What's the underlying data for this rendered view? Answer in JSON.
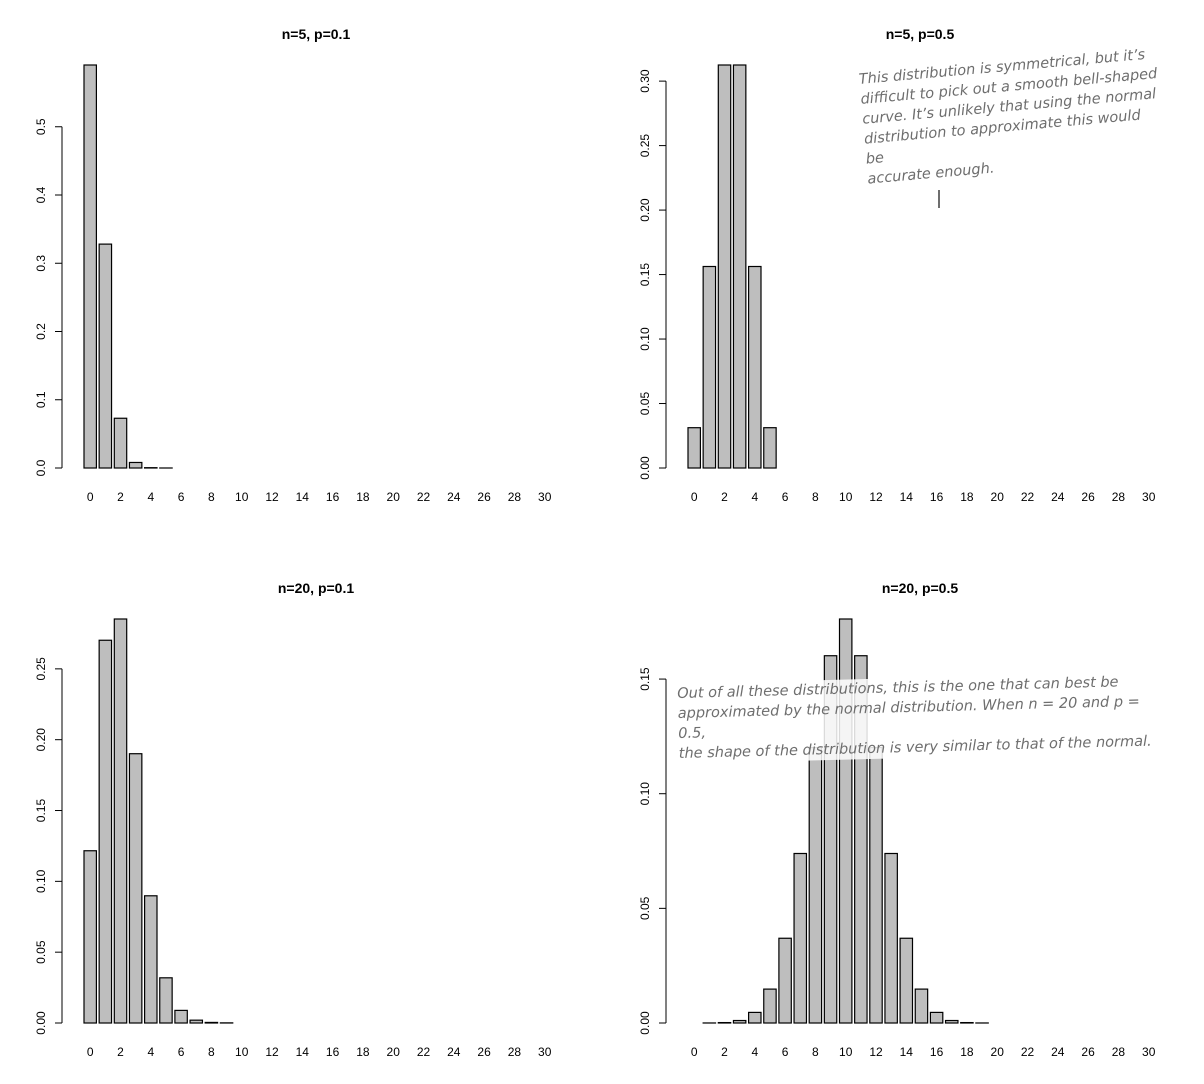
{
  "chart_data": [
    {
      "type": "bar",
      "title": "n=5, p=0.1",
      "x": [
        0,
        1,
        2,
        3,
        4,
        5,
        6,
        7,
        8,
        9,
        10,
        11,
        12,
        13,
        14,
        15,
        16,
        17,
        18,
        19,
        20,
        21,
        22,
        23,
        24,
        25,
        26,
        27,
        28,
        29,
        30
      ],
      "values": [
        0.59049,
        0.32805,
        0.0729,
        0.0081,
        0.00045,
        1e-05,
        0,
        0,
        0,
        0,
        0,
        0,
        0,
        0,
        0,
        0,
        0,
        0,
        0,
        0,
        0,
        0,
        0,
        0,
        0,
        0,
        0,
        0,
        0,
        0,
        0
      ],
      "xticks": [
        0,
        2,
        4,
        6,
        8,
        10,
        12,
        14,
        16,
        18,
        20,
        22,
        24,
        26,
        28,
        30
      ],
      "yticks": [
        "0.0",
        "0.1",
        "0.2",
        "0.3",
        "0.4",
        "0.5"
      ],
      "ylim": [
        0,
        0.59049
      ],
      "xlabel": "",
      "ylabel": "",
      "annotation": ""
    },
    {
      "type": "bar",
      "title": "n=5, p=0.5",
      "x": [
        0,
        1,
        2,
        3,
        4,
        5,
        6,
        7,
        8,
        9,
        10,
        11,
        12,
        13,
        14,
        15,
        16,
        17,
        18,
        19,
        20,
        21,
        22,
        23,
        24,
        25,
        26,
        27,
        28,
        29,
        30
      ],
      "values": [
        0.03125,
        0.15625,
        0.3125,
        0.3125,
        0.15625,
        0.03125,
        0,
        0,
        0,
        0,
        0,
        0,
        0,
        0,
        0,
        0,
        0,
        0,
        0,
        0,
        0,
        0,
        0,
        0,
        0,
        0,
        0,
        0,
        0,
        0,
        0
      ],
      "xticks": [
        0,
        2,
        4,
        6,
        8,
        10,
        12,
        14,
        16,
        18,
        20,
        22,
        24,
        26,
        28,
        30
      ],
      "yticks": [
        "0.00",
        "0.05",
        "0.10",
        "0.15",
        "0.20",
        "0.25",
        "0.30"
      ],
      "ylim": [
        0,
        0.3125
      ],
      "xlabel": "",
      "ylabel": "",
      "annotation": "This distribution is symmetrical, but it’s\ndifficult to pick out a smooth bell-shaped\ncurve. It’s unlikely that using the normal\ndistribution to approximate this would be\naccurate enough."
    },
    {
      "type": "bar",
      "title": "n=20, p=0.1",
      "x": [
        0,
        1,
        2,
        3,
        4,
        5,
        6,
        7,
        8,
        9,
        10,
        11,
        12,
        13,
        14,
        15,
        16,
        17,
        18,
        19,
        20,
        21,
        22,
        23,
        24,
        25,
        26,
        27,
        28,
        29,
        30
      ],
      "values": [
        0.1216,
        0.2702,
        0.2852,
        0.1901,
        0.0898,
        0.0319,
        0.0089,
        0.002,
        0.0004,
        0.0001,
        0,
        0,
        0,
        0,
        0,
        0,
        0,
        0,
        0,
        0,
        0,
        0,
        0,
        0,
        0,
        0,
        0,
        0,
        0,
        0,
        0
      ],
      "xticks": [
        0,
        2,
        4,
        6,
        8,
        10,
        12,
        14,
        16,
        18,
        20,
        22,
        24,
        26,
        28,
        30
      ],
      "yticks": [
        "0.00",
        "0.05",
        "0.10",
        "0.15",
        "0.20",
        "0.25"
      ],
      "ylim": [
        0,
        0.2852
      ],
      "xlabel": "",
      "ylabel": "",
      "annotation": ""
    },
    {
      "type": "bar",
      "title": "n=20, p=0.5",
      "x": [
        0,
        1,
        2,
        3,
        4,
        5,
        6,
        7,
        8,
        9,
        10,
        11,
        12,
        13,
        14,
        15,
        16,
        17,
        18,
        19,
        20,
        21,
        22,
        23,
        24,
        25,
        26,
        27,
        28,
        29,
        30
      ],
      "values": [
        1e-06,
        1.9e-05,
        0.000181,
        0.001087,
        0.004621,
        0.014786,
        0.036964,
        0.073929,
        0.120134,
        0.160179,
        0.176197,
        0.160179,
        0.120134,
        0.073929,
        0.036964,
        0.014786,
        0.004621,
        0.001087,
        0.000181,
        1.9e-05,
        1e-06,
        0,
        0,
        0,
        0,
        0,
        0,
        0,
        0,
        0,
        0
      ],
      "xticks": [
        0,
        2,
        4,
        6,
        8,
        10,
        12,
        14,
        16,
        18,
        20,
        22,
        24,
        26,
        28,
        30
      ],
      "yticks": [
        "0.00",
        "0.05",
        "0.10",
        "0.15"
      ],
      "ylim": [
        0,
        0.176197
      ],
      "xlabel": "",
      "ylabel": "",
      "annotation": "Out of all these distributions, this is the one that can best be\napproximated by the normal distribution. When n = 20 and p = 0.5,\nthe shape of the distribution is very similar to that of the normal."
    }
  ]
}
